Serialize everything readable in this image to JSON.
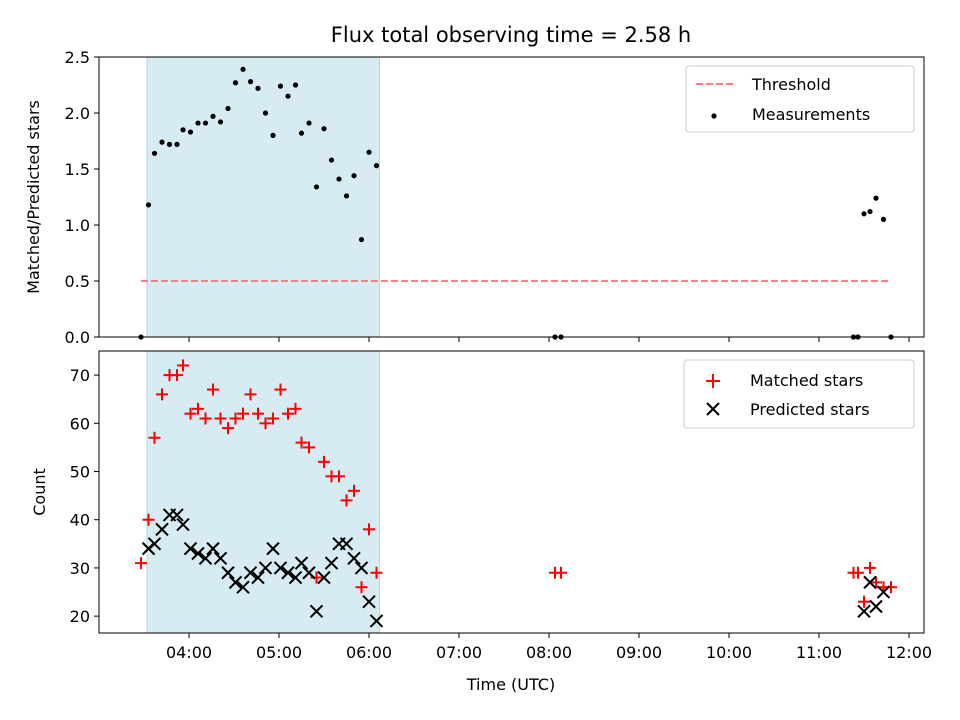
{
  "colors": {
    "threshold": "#ff7f7f",
    "matched": "#ff0000",
    "predicted": "#000000",
    "span": "#add8e6"
  },
  "chart_data": [
    {
      "type": "scatter",
      "title": "Flux total observing time = 2.58 h",
      "xlabel": "",
      "ylabel": "Matched/Predicted stars",
      "xlim": [
        "03:00",
        "12:10"
      ],
      "ylim": [
        0,
        2.5
      ],
      "yticks": [
        "0.0",
        "0.5",
        "1.0",
        "1.5",
        "2.0",
        "2.5"
      ],
      "shaded_span": [
        "03:32",
        "06:07"
      ],
      "threshold": {
        "name": "Threshold",
        "y": 0.5,
        "x": [
          "03:28",
          "11:48"
        ]
      },
      "series": [
        {
          "name": "Measurements",
          "x": [
            "03:28",
            "03:33",
            "03:37",
            "03:42",
            "03:47",
            "03:52",
            "03:56",
            "04:01",
            "04:06",
            "04:11",
            "04:16",
            "04:21",
            "04:26",
            "04:31",
            "04:36",
            "04:41",
            "04:46",
            "04:51",
            "04:56",
            "05:01",
            "05:06",
            "05:11",
            "05:15",
            "05:20",
            "05:25",
            "05:30",
            "05:35",
            "05:40",
            "05:45",
            "05:50",
            "05:55",
            "06:00",
            "06:05",
            "08:04",
            "08:08",
            "11:23",
            "11:26",
            "11:30",
            "11:34",
            "11:38",
            "11:43",
            "11:48"
          ],
          "y": [
            0,
            1.18,
            1.64,
            1.74,
            1.72,
            1.72,
            1.85,
            1.83,
            1.91,
            1.91,
            1.97,
            1.92,
            2.04,
            2.27,
            2.39,
            2.28,
            2.22,
            2.0,
            1.8,
            2.24,
            2.15,
            2.25,
            1.82,
            1.91,
            1.34,
            1.86,
            1.58,
            1.41,
            1.26,
            1.44,
            0.87,
            1.65,
            1.53,
            0,
            0,
            0,
            0,
            1.1,
            1.12,
            1.24,
            1.05,
            0
          ]
        }
      ]
    },
    {
      "type": "scatter",
      "title": "",
      "xlabel": "Time (UTC)",
      "ylabel": "Count",
      "xlim": [
        "03:00",
        "12:10"
      ],
      "ylim": [
        16.5,
        75
      ],
      "yticks": [
        20,
        30,
        40,
        50,
        60,
        70
      ],
      "xticks": [
        "04:00",
        "05:00",
        "06:00",
        "07:00",
        "08:00",
        "09:00",
        "10:00",
        "11:00",
        "12:00"
      ],
      "shaded_span": [
        "03:32",
        "06:07"
      ],
      "series": [
        {
          "name": "Matched stars",
          "marker": "plus",
          "x": [
            "03:28",
            "03:33",
            "03:37",
            "03:42",
            "03:47",
            "03:52",
            "03:56",
            "04:01",
            "04:06",
            "04:11",
            "04:16",
            "04:21",
            "04:26",
            "04:31",
            "04:36",
            "04:41",
            "04:46",
            "04:51",
            "04:56",
            "05:01",
            "05:06",
            "05:11",
            "05:15",
            "05:20",
            "05:25",
            "05:30",
            "05:35",
            "05:40",
            "05:45",
            "05:50",
            "05:55",
            "06:00",
            "06:05",
            "08:04",
            "08:08",
            "11:23",
            "11:26",
            "11:30",
            "11:34",
            "11:38",
            "11:43",
            "11:48"
          ],
          "y": [
            31,
            40,
            57,
            66,
            70,
            70,
            72,
            62,
            63,
            61,
            67,
            61,
            59,
            61,
            62,
            66,
            62,
            60,
            61,
            67,
            62,
            63,
            56,
            55,
            28,
            52,
            49,
            49,
            44,
            46,
            26,
            38,
            29,
            29,
            29,
            29,
            29,
            23,
            30,
            27,
            26,
            26
          ]
        },
        {
          "name": "Predicted stars",
          "marker": "x",
          "x": [
            "03:33",
            "03:37",
            "03:42",
            "03:47",
            "03:52",
            "03:56",
            "04:01",
            "04:06",
            "04:11",
            "04:16",
            "04:21",
            "04:26",
            "04:31",
            "04:36",
            "04:41",
            "04:46",
            "04:51",
            "04:56",
            "05:01",
            "05:06",
            "05:11",
            "05:15",
            "05:20",
            "05:25",
            "05:30",
            "05:35",
            "05:40",
            "05:45",
            "05:50",
            "05:55",
            "06:00",
            "06:05",
            "11:30",
            "11:34",
            "11:38",
            "11:43"
          ],
          "y": [
            34,
            35,
            38,
            41,
            41,
            39,
            34,
            33,
            32,
            34,
            32,
            29,
            27,
            26,
            29,
            28,
            30,
            34,
            30,
            29,
            28,
            31,
            29,
            21,
            28,
            31,
            35,
            35,
            32,
            30,
            23,
            19,
            21,
            27,
            22,
            25
          ]
        }
      ]
    }
  ]
}
